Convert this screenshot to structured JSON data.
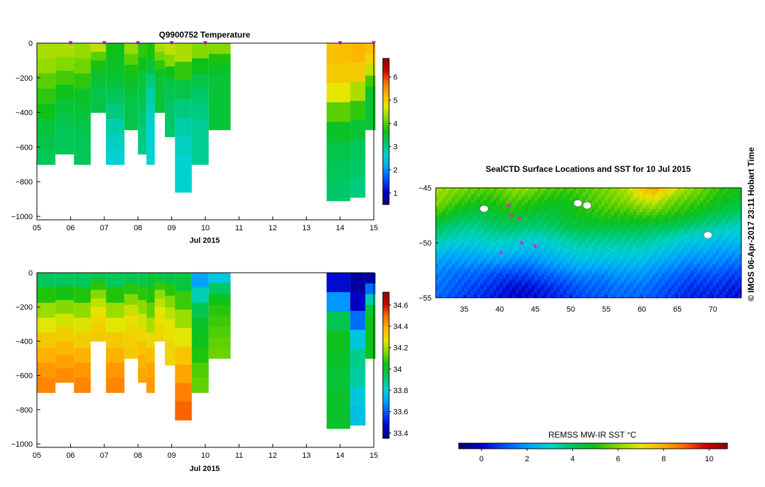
{
  "colors": {
    "sst_scale": [
      "#00007a",
      "#0000c8",
      "#0050ff",
      "#00a0ff",
      "#00d2d2",
      "#00c864",
      "#10c010",
      "#7cd800",
      "#e6e600",
      "#ffb400",
      "#ff6a00",
      "#c80000",
      "#8c0000"
    ],
    "track_marker": "#e020e0",
    "frame": "#000000"
  },
  "chart_data": [
    {
      "name": "temperature-profiles",
      "type": "heatmap",
      "title": "Q9900752  Temperature",
      "xlabel": "Jul 2015",
      "x_tick_labels": [
        "05",
        "06",
        "07",
        "08",
        "09",
        "10",
        "11",
        "12",
        "13",
        "14",
        "15"
      ],
      "x_range_day": [
        5,
        15
      ],
      "y_tick_labels": [
        "0",
        "−200",
        "−400",
        "−600",
        "−800",
        "−1000"
      ],
      "ylim": [
        -1020,
        0
      ],
      "colorbar": {
        "range": [
          0.5,
          6.8
        ],
        "tick_labels": [
          "1",
          "2",
          "3",
          "4",
          "5",
          "6"
        ],
        "tick_values": [
          1,
          2,
          3,
          4,
          5,
          6
        ]
      },
      "profile_markers_day": [
        6.0,
        7.0,
        8.0,
        9.0,
        10.0,
        14.0,
        15.0
      ],
      "profiles": [
        {
          "day_start": 5.0,
          "day_end": 5.55,
          "max_depth": 700,
          "v": [
            4.4,
            4.3,
            4.0,
            3.8,
            3.6,
            3.4,
            3.3,
            3.2
          ]
        },
        {
          "day_start": 5.55,
          "day_end": 6.1,
          "max_depth": 640,
          "v": [
            4.4,
            4.2,
            3.9,
            3.6,
            3.4,
            3.3,
            3.2,
            3.2
          ]
        },
        {
          "day_start": 6.1,
          "day_end": 6.6,
          "max_depth": 700,
          "v": [
            4.3,
            4.1,
            3.8,
            3.5,
            3.4,
            3.3,
            3.2,
            3.2
          ]
        },
        {
          "day_start": 6.6,
          "day_end": 7.05,
          "max_depth": 400,
          "v": [
            4.5,
            4.0,
            3.7,
            3.5,
            3.4,
            3.3,
            3.3,
            3.3
          ]
        },
        {
          "day_start": 7.05,
          "day_end": 7.6,
          "max_depth": 700,
          "v": [
            3.6,
            3.5,
            3.4,
            3.2,
            3.0,
            2.8,
            2.7,
            2.6
          ]
        },
        {
          "day_start": 7.6,
          "day_end": 8.0,
          "max_depth": 500,
          "v": [
            4.3,
            4.0,
            3.7,
            3.5,
            3.4,
            3.3,
            3.3,
            3.3
          ]
        },
        {
          "day_start": 8.0,
          "day_end": 8.25,
          "max_depth": 640,
          "v": [
            3.8,
            3.6,
            3.4,
            3.3,
            3.2,
            3.1,
            3.0,
            3.0
          ]
        },
        {
          "day_start": 8.25,
          "day_end": 8.5,
          "max_depth": 700,
          "v": [
            3.7,
            3.4,
            3.0,
            2.8,
            2.7,
            2.6,
            2.6,
            2.6
          ]
        },
        {
          "day_start": 8.5,
          "day_end": 8.8,
          "max_depth": 400,
          "v": [
            4.4,
            4.1,
            3.8,
            3.5,
            3.4,
            3.4,
            3.4,
            3.4
          ]
        },
        {
          "day_start": 8.8,
          "day_end": 9.1,
          "max_depth": 540,
          "v": [
            4.5,
            4.2,
            3.6,
            3.3,
            3.2,
            3.1,
            3.1,
            3.1
          ]
        },
        {
          "day_start": 9.1,
          "day_end": 9.6,
          "max_depth": 860,
          "v": [
            4.4,
            3.8,
            3.3,
            3.0,
            2.8,
            2.7,
            2.6,
            2.6
          ]
        },
        {
          "day_start": 9.6,
          "day_end": 10.1,
          "max_depth": 700,
          "v": [
            4.2,
            3.6,
            3.3,
            3.1,
            3.0,
            2.9,
            2.9,
            2.9
          ]
        },
        {
          "day_start": 10.1,
          "day_end": 10.75,
          "max_depth": 500,
          "v": [
            4.2,
            3.7,
            3.5,
            3.4,
            3.4,
            3.4,
            3.4,
            3.4
          ]
        },
        {
          "day_start": 13.6,
          "day_end": 14.3,
          "max_depth": 910,
          "v": [
            5.1,
            5.0,
            4.7,
            4.0,
            3.5,
            3.3,
            3.2,
            3.1
          ]
        },
        {
          "day_start": 14.3,
          "day_end": 14.75,
          "max_depth": 890,
          "v": [
            5.2,
            5.0,
            4.4,
            3.8,
            3.4,
            3.2,
            3.1,
            3.0
          ]
        },
        {
          "day_start": 14.75,
          "day_end": 15.05,
          "max_depth": 500,
          "v": [
            5.1,
            4.9,
            4.5,
            3.9,
            3.5,
            3.4,
            3.4,
            3.4
          ]
        }
      ]
    },
    {
      "name": "salinity-profiles",
      "type": "heatmap",
      "title": "",
      "xlabel": "Jul 2015",
      "x_tick_labels": [
        "05",
        "06",
        "07",
        "08",
        "09",
        "10",
        "11",
        "12",
        "13",
        "14",
        "15"
      ],
      "x_range_day": [
        5,
        15
      ],
      "y_tick_labels": [
        "0",
        "−200",
        "−400",
        "−600",
        "−800",
        "−1000"
      ],
      "ylim": [
        -1020,
        0
      ],
      "colorbar": {
        "range": [
          33.35,
          34.72
        ],
        "tick_labels": [
          "33.4",
          "33.6",
          "33.8",
          "34",
          "34.2",
          "34.4",
          "34.6"
        ],
        "tick_values": [
          33.4,
          33.6,
          33.8,
          34.0,
          34.2,
          34.4,
          34.6
        ]
      },
      "profiles": [
        {
          "day_start": 5.0,
          "day_end": 5.55,
          "max_depth": 700,
          "v": [
            33.93,
            34.05,
            34.18,
            34.26,
            34.33,
            34.38,
            34.42,
            34.45
          ]
        },
        {
          "day_start": 5.55,
          "day_end": 6.1,
          "max_depth": 640,
          "v": [
            33.93,
            34.04,
            34.16,
            34.24,
            34.32,
            34.37,
            34.41,
            34.44
          ]
        },
        {
          "day_start": 6.1,
          "day_end": 6.6,
          "max_depth": 700,
          "v": [
            33.94,
            34.05,
            34.17,
            34.25,
            34.32,
            34.38,
            34.42,
            34.45
          ]
        },
        {
          "day_start": 6.6,
          "day_end": 7.05,
          "max_depth": 400,
          "v": [
            33.96,
            34.06,
            34.16,
            34.22,
            34.27,
            34.3,
            34.32,
            34.33
          ]
        },
        {
          "day_start": 7.05,
          "day_end": 7.6,
          "max_depth": 700,
          "v": [
            33.94,
            34.05,
            34.18,
            34.26,
            34.33,
            34.38,
            34.42,
            34.45
          ]
        },
        {
          "day_start": 7.6,
          "day_end": 8.0,
          "max_depth": 500,
          "v": [
            33.95,
            34.06,
            34.16,
            34.23,
            34.28,
            34.3,
            34.32,
            34.33
          ]
        },
        {
          "day_start": 8.0,
          "day_end": 8.25,
          "max_depth": 640,
          "v": [
            33.96,
            34.06,
            34.17,
            34.24,
            34.3,
            34.35,
            34.38,
            34.4
          ]
        },
        {
          "day_start": 8.25,
          "day_end": 8.5,
          "max_depth": 700,
          "v": [
            33.98,
            34.05,
            34.12,
            34.2,
            34.3,
            34.36,
            34.4,
            34.42
          ]
        },
        {
          "day_start": 8.5,
          "day_end": 8.8,
          "max_depth": 400,
          "v": [
            33.97,
            34.07,
            34.17,
            34.22,
            34.26,
            34.28,
            34.3,
            34.3
          ]
        },
        {
          "day_start": 8.8,
          "day_end": 9.1,
          "max_depth": 540,
          "v": [
            33.96,
            34.06,
            34.16,
            34.22,
            34.26,
            34.28,
            34.3,
            34.3
          ]
        },
        {
          "day_start": 9.1,
          "day_end": 9.6,
          "max_depth": 860,
          "v": [
            33.97,
            34.08,
            34.18,
            34.26,
            34.34,
            34.4,
            34.46,
            34.5
          ]
        },
        {
          "day_start": 9.6,
          "day_end": 10.1,
          "max_depth": 700,
          "v": [
            33.7,
            33.84,
            33.95,
            34.0,
            34.02,
            34.05,
            34.1,
            34.12
          ]
        },
        {
          "day_start": 10.1,
          "day_end": 10.75,
          "max_depth": 500,
          "v": [
            33.78,
            33.92,
            34.02,
            34.06,
            34.08,
            34.1,
            34.12,
            34.13
          ]
        },
        {
          "day_start": 13.6,
          "day_end": 14.3,
          "max_depth": 910,
          "v": [
            33.48,
            33.68,
            33.95,
            34.02,
            34.0,
            33.98,
            34.0,
            34.0
          ]
        },
        {
          "day_start": 14.3,
          "day_end": 14.75,
          "max_depth": 890,
          "v": [
            33.4,
            33.46,
            33.62,
            33.78,
            33.88,
            33.86,
            33.78,
            33.76
          ]
        },
        {
          "day_start": 14.75,
          "day_end": 15.05,
          "max_depth": 500,
          "v": [
            33.42,
            33.62,
            33.85,
            33.98,
            34.02,
            34.02,
            34.02,
            34.02
          ]
        }
      ]
    },
    {
      "name": "sst-map",
      "type": "heatmap",
      "title": "SealCTD Surface Locations and SST for 10 Jul 2015",
      "x_tick_labels": [
        "35",
        "40",
        "45",
        "50",
        "55",
        "60",
        "65",
        "70"
      ],
      "x_tick_values": [
        35,
        40,
        45,
        50,
        55,
        60,
        65,
        70
      ],
      "y_tick_labels": [
        "−45",
        "−50",
        "−55"
      ],
      "y_tick_values": [
        -45,
        -50,
        -55
      ],
      "lon_range": [
        31,
        74
      ],
      "lat_range": [
        -55,
        -45
      ],
      "sst_grid": [
        [
          6.2,
          6.0,
          5.8,
          5.6,
          5.5,
          5.6,
          6.0,
          6.0,
          5.6,
          5.4,
          5.3,
          5.4,
          5.6,
          5.8,
          6.0,
          6.4,
          7.4,
          8.0,
          7.2,
          6.4,
          6.0,
          5.6,
          5.2,
          5.0,
          4.8
        ],
        [
          6.0,
          5.6,
          5.2,
          5.0,
          5.0,
          5.2,
          5.4,
          5.2,
          5.0,
          4.8,
          4.8,
          5.0,
          5.4,
          5.6,
          5.8,
          6.0,
          6.4,
          6.6,
          6.0,
          5.6,
          5.4,
          5.2,
          4.8,
          4.6,
          4.4
        ],
        [
          5.2,
          4.8,
          4.4,
          4.2,
          4.4,
          4.6,
          4.8,
          4.6,
          4.4,
          4.4,
          4.6,
          4.8,
          5.0,
          5.2,
          5.2,
          5.2,
          5.4,
          5.4,
          5.2,
          5.0,
          4.8,
          4.4,
          4.2,
          4.0,
          3.8
        ],
        [
          4.2,
          3.8,
          3.6,
          3.6,
          3.8,
          4.0,
          4.0,
          3.8,
          3.8,
          4.0,
          4.2,
          4.4,
          4.4,
          4.4,
          4.4,
          4.4,
          4.4,
          4.2,
          4.2,
          4.0,
          3.8,
          3.6,
          3.4,
          3.2,
          3.0
        ],
        [
          3.4,
          3.2,
          3.0,
          3.0,
          3.2,
          3.2,
          3.2,
          3.0,
          3.0,
          3.2,
          3.4,
          3.6,
          3.6,
          3.6,
          3.6,
          3.6,
          3.6,
          3.4,
          3.2,
          3.0,
          2.8,
          2.8,
          2.6,
          2.6,
          2.6
        ],
        [
          2.6,
          2.4,
          2.4,
          2.4,
          2.6,
          2.6,
          2.6,
          2.4,
          2.4,
          2.6,
          2.8,
          3.0,
          3.0,
          3.0,
          3.0,
          3.0,
          3.0,
          2.8,
          2.6,
          2.4,
          2.2,
          2.2,
          2.0,
          2.0,
          2.0
        ],
        [
          2.0,
          1.8,
          1.8,
          1.8,
          1.8,
          1.8,
          1.6,
          1.6,
          1.8,
          2.0,
          2.2,
          2.4,
          2.4,
          2.4,
          2.4,
          2.4,
          2.4,
          2.2,
          2.0,
          1.8,
          1.6,
          1.6,
          1.6,
          1.4,
          1.4
        ],
        [
          1.6,
          1.4,
          1.2,
          1.2,
          1.0,
          0.8,
          0.8,
          0.8,
          1.0,
          1.2,
          1.4,
          1.6,
          1.6,
          1.6,
          1.8,
          1.8,
          1.8,
          1.6,
          1.4,
          1.2,
          1.0,
          1.0,
          1.0,
          0.8,
          0.8
        ],
        [
          1.4,
          1.2,
          1.0,
          0.8,
          0.6,
          0.4,
          0.2,
          0.2,
          0.4,
          0.6,
          0.8,
          1.0,
          1.2,
          1.2,
          1.4,
          1.4,
          1.4,
          1.2,
          1.0,
          0.8,
          0.6,
          0.6,
          0.6,
          0.4,
          0.4
        ],
        [
          1.2,
          1.0,
          0.8,
          0.6,
          0.4,
          0.2,
          0.0,
          0.0,
          0.2,
          0.4,
          0.6,
          0.8,
          1.0,
          1.0,
          1.2,
          1.2,
          1.2,
          1.0,
          0.8,
          0.6,
          0.4,
          0.4,
          0.4,
          0.2,
          0.2
        ]
      ],
      "land_islands": [
        {
          "lon": 37.8,
          "lat": -46.9
        },
        {
          "lon": 51.0,
          "lat": -46.4
        },
        {
          "lon": 52.3,
          "lat": -46.6
        },
        {
          "lon": 69.3,
          "lat": -49.3
        }
      ],
      "seal_positions": [
        {
          "lon": 41.2,
          "lat": -46.6
        },
        {
          "lon": 42.8,
          "lat": -47.8
        },
        {
          "lon": 41.6,
          "lat": -47.5
        },
        {
          "lon": 43.1,
          "lat": -50.0
        },
        {
          "lon": 45.0,
          "lat": -50.3
        },
        {
          "lon": 40.2,
          "lat": -50.9
        }
      ],
      "colorbar": {
        "label": "REMSS MW-IR SST °C",
        "range": [
          -1,
          10.8
        ],
        "tick_labels": [
          "0",
          "2",
          "4",
          "6",
          "8",
          "10"
        ],
        "tick_values": [
          0,
          2,
          4,
          6,
          8,
          10
        ]
      }
    }
  ],
  "side_label": "©  IMOS 06-Apr-2017 23:11 Hobart Time"
}
